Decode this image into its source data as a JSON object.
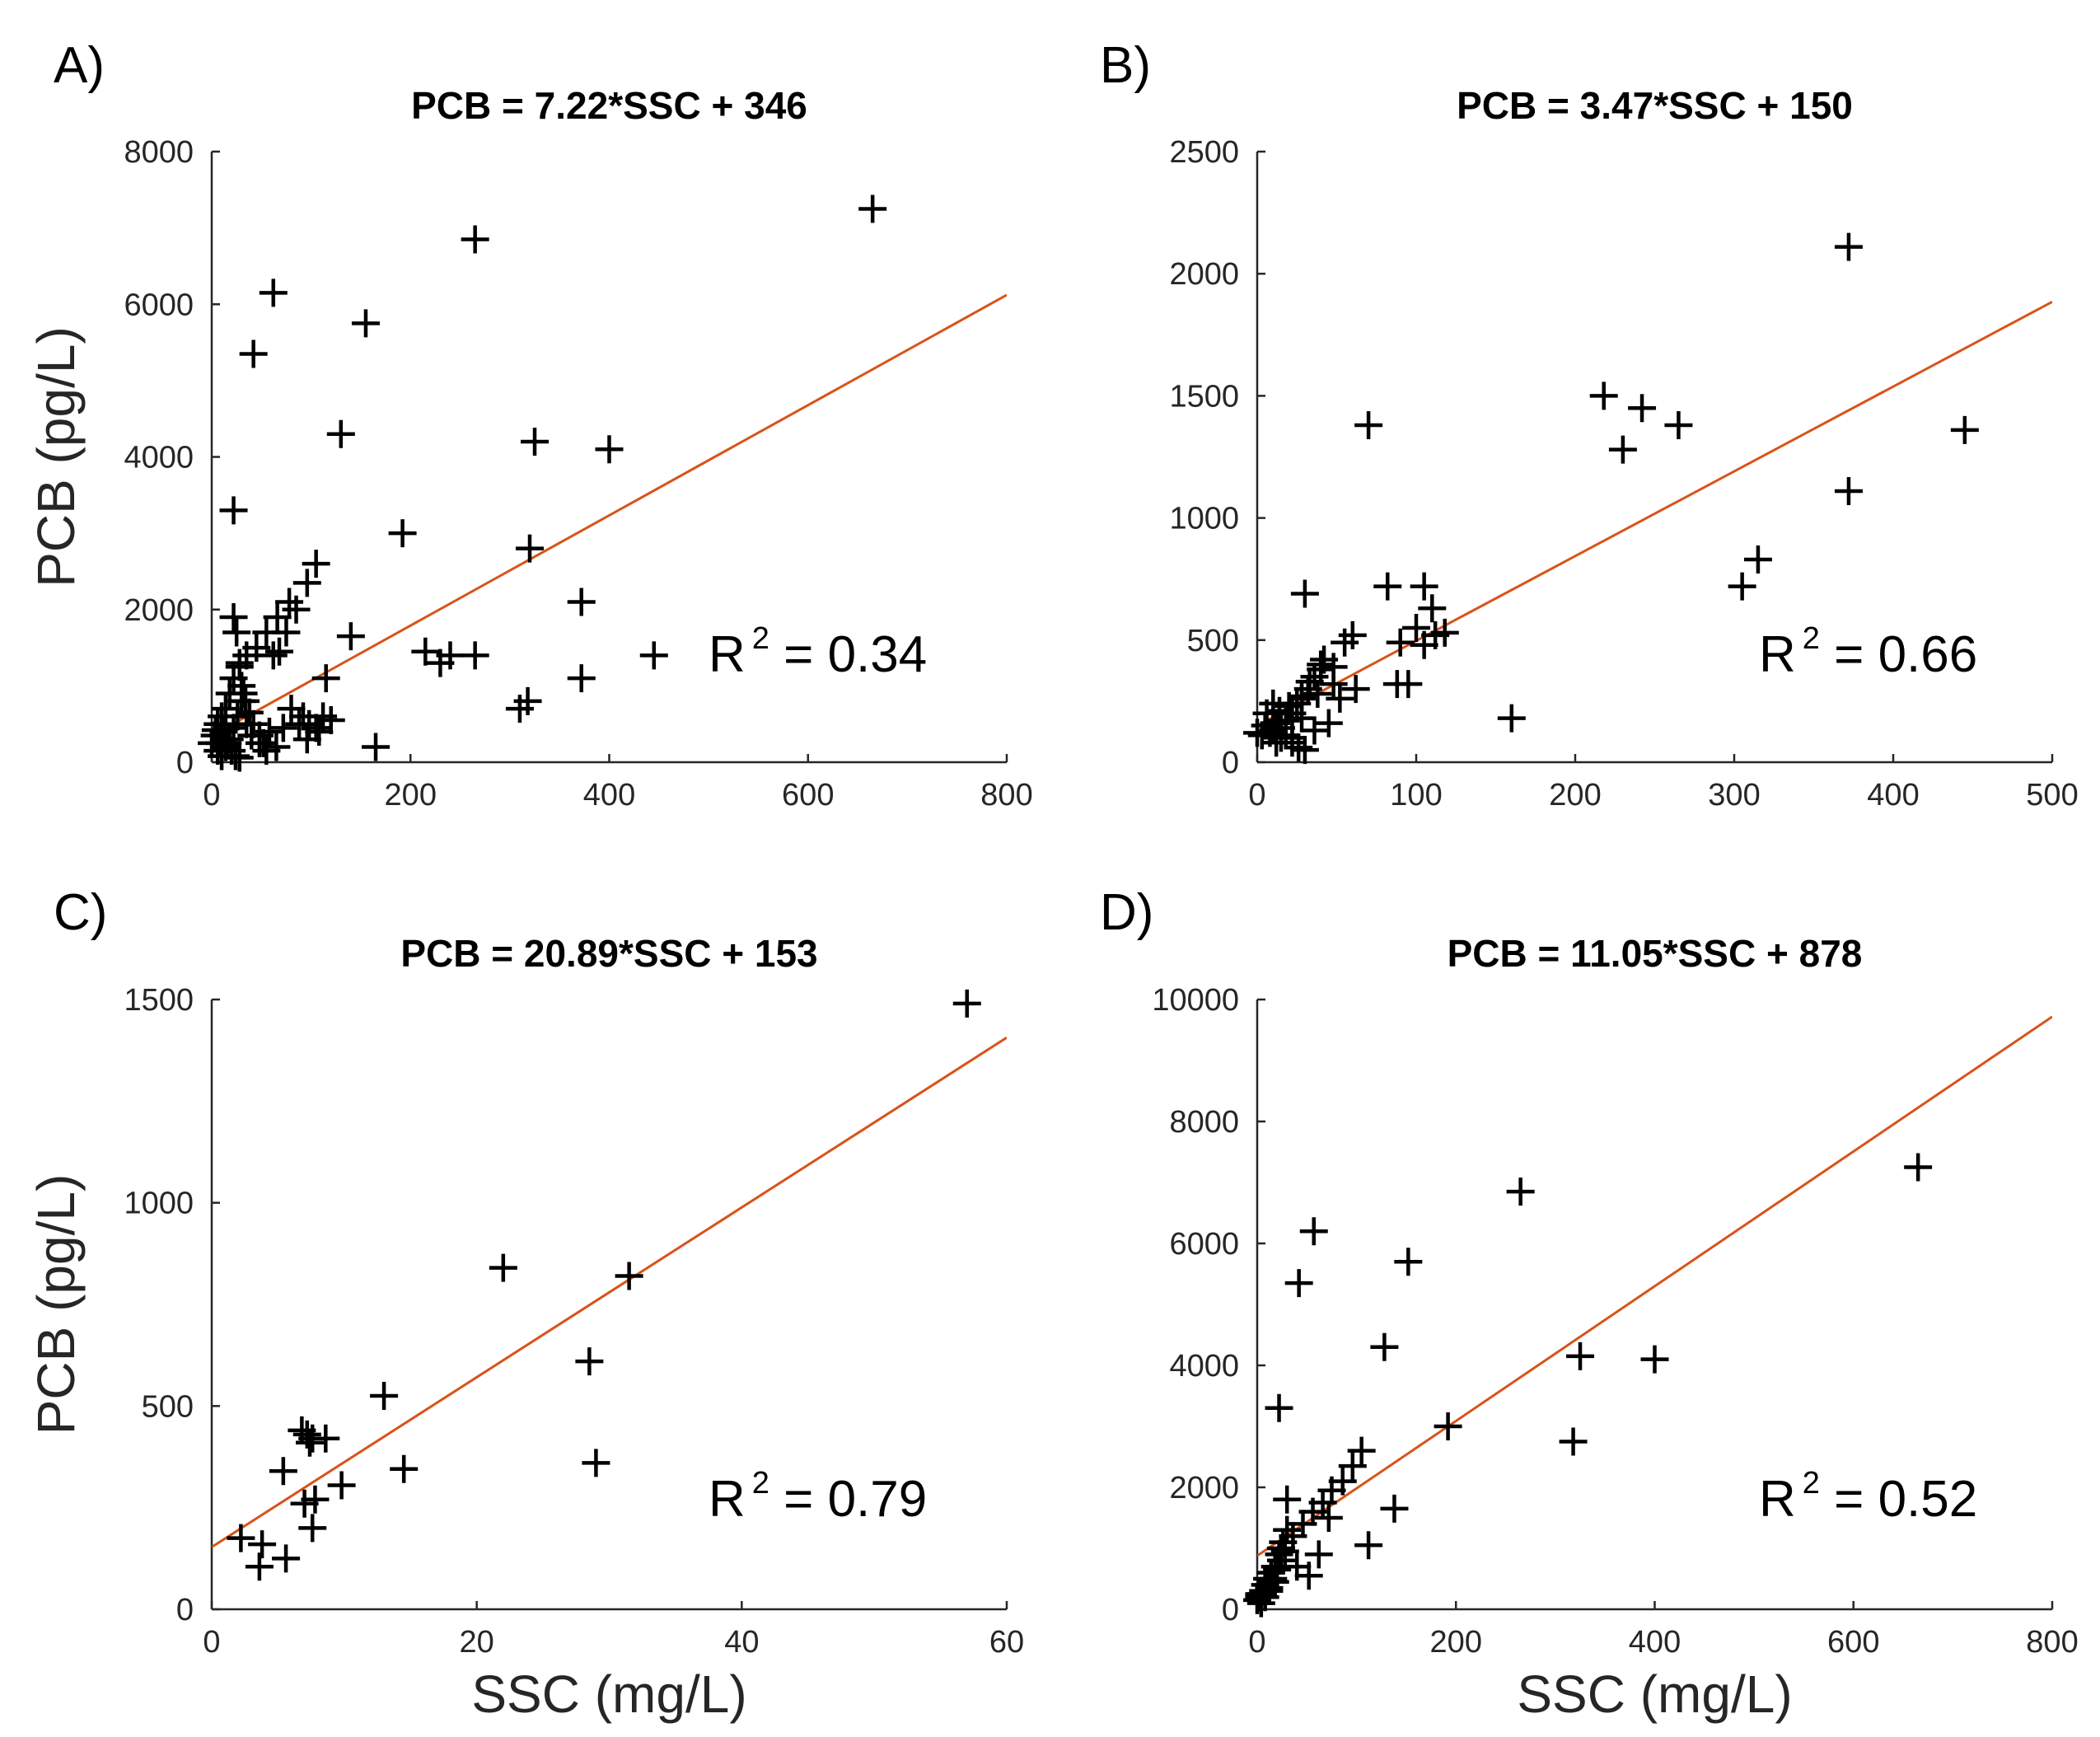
{
  "chart_data": [
    {
      "panel": "A)",
      "type": "scatter",
      "title": "PCB = 7.22*SSC + 346",
      "xlabel": "",
      "ylabel": "PCB (pg/L)",
      "xlim": [
        0,
        800
      ],
      "ylim": [
        0,
        8000
      ],
      "xticks": [
        0,
        200,
        400,
        600,
        800
      ],
      "yticks": [
        0,
        2000,
        4000,
        6000,
        8000
      ],
      "annotation": {
        "base": "R",
        "sup": "2",
        "text": " = 0.34"
      },
      "fit": {
        "slope": 7.22,
        "intercept": 346
      },
      "series": [
        {
          "marker": "+",
          "x": [
            665,
            265,
            62,
            155,
            42,
            22,
            130,
            325,
            400,
            192,
            320,
            372,
            372,
            445,
            265,
            240,
            230,
            215,
            310,
            318,
            165,
            105,
            96,
            78,
            66,
            55,
            45,
            35,
            28,
            22,
            18,
            14,
            10,
            6,
            3,
            0,
            6,
            10,
            14,
            18,
            22,
            26,
            30,
            35,
            40,
            48,
            55,
            65,
            72,
            80,
            88,
            96,
            105,
            112,
            120,
            140,
            22,
            25,
            28,
            30,
            34,
            38,
            42,
            48,
            52,
            58,
            62,
            68,
            75,
            85,
            92,
            98,
            108,
            115,
            12,
            16,
            20,
            24,
            28,
            32,
            8,
            4
          ],
          "y": [
            7250,
            6850,
            6150,
            5750,
            5350,
            3300,
            4300,
            4200,
            4100,
            3000,
            2800,
            2100,
            1100,
            1400,
            1400,
            1400,
            1300,
            1450,
            700,
            800,
            200,
            2600,
            2350,
            2100,
            1900,
            1700,
            1500,
            1400,
            1300,
            1100,
            900,
            700,
            600,
            500,
            350,
            250,
            150,
            80,
            200,
            300,
            450,
            600,
            800,
            500,
            350,
            250,
            150,
            200,
            450,
            700,
            500,
            300,
            450,
            600,
            550,
            1650,
            1900,
            1700,
            1250,
            1000,
            800,
            650,
            500,
            350,
            250,
            400,
            1400,
            1450,
            1700,
            2000,
            600,
            500,
            400,
            1100,
            400,
            250,
            150,
            80,
            60,
            900,
            250,
            420
          ]
        }
      ]
    },
    {
      "panel": "B)",
      "type": "scatter",
      "title": "PCB = 3.47*SSC + 150",
      "xlabel": "",
      "ylabel": "",
      "xlim": [
        0,
        500
      ],
      "ylim": [
        0,
        2500
      ],
      "xticks": [
        0,
        100,
        200,
        300,
        400,
        500
      ],
      "yticks": [
        0,
        500,
        1000,
        1500,
        2000,
        2500
      ],
      "annotation": {
        "base": "R",
        "sup": "2",
        "text": " = 0.66"
      },
      "fit": {
        "slope": 3.47,
        "intercept": 150
      },
      "series": [
        {
          "marker": "+",
          "x": [
            372,
            218,
            242,
            265,
            230,
            445,
            372,
            70,
            315,
            305,
            160,
            30,
            82,
            105,
            110,
            100,
            90,
            88,
            95,
            112,
            118,
            105,
            60,
            55,
            48,
            42,
            40,
            36,
            32,
            28,
            25,
            22,
            18,
            15,
            12,
            10,
            8,
            5,
            3,
            0,
            6,
            10,
            14,
            18,
            22,
            26,
            30,
            36,
            45,
            52,
            62,
            48,
            38,
            28,
            20,
            15,
            12,
            22,
            28,
            33,
            40
          ],
          "y": [
            2110,
            1500,
            1450,
            1380,
            1280,
            1360,
            1110,
            1380,
            830,
            720,
            180,
            690,
            720,
            720,
            630,
            550,
            490,
            320,
            320,
            520,
            530,
            480,
            520,
            490,
            390,
            420,
            400,
            350,
            300,
            270,
            240,
            200,
            170,
            140,
            160,
            130,
            120,
            150,
            110,
            120,
            200,
            240,
            210,
            110,
            80,
            60,
            50,
            130,
            160,
            260,
            300,
            320,
            280,
            260,
            230,
            100,
            80,
            100,
            180,
            330,
            380
          ]
        }
      ]
    },
    {
      "panel": "C)",
      "type": "scatter",
      "title": "PCB = 20.89*SSC + 153",
      "xlabel": "",
      "ylabel": "PCB (pg/L)",
      "xlim": [
        0,
        60
      ],
      "ylim": [
        0,
        1500
      ],
      "xticks": [
        0,
        20,
        40,
        60
      ],
      "yticks": [
        0,
        500,
        1000,
        1500
      ],
      "annotation": {
        "base": "R",
        "sup": "2",
        "text": " = 0.79"
      },
      "fit": {
        "slope": 20.89,
        "intercept": 153
      },
      "series": [
        {
          "marker": "+",
          "x": [
            57,
            22,
            31.5,
            28.5,
            29,
            13,
            14.5,
            6.8,
            7.2,
            7.6,
            8.6,
            7.4,
            7.0,
            5.4,
            9.8,
            7.8,
            7.6,
            2.2,
            3.8,
            5.6,
            3.6
          ],
          "y": [
            1490,
            840,
            820,
            610,
            360,
            525,
            345,
            440,
            430,
            420,
            420,
            410,
            260,
            340,
            305,
            270,
            200,
            175,
            160,
            125,
            105
          ]
        }
      ]
    },
    {
      "panel": "D)",
      "type": "scatter",
      "title": "PCB = 11.05*SSC + 878",
      "xlabel": "SSC (mg/L)",
      "ylabel": "",
      "xlim": [
        0,
        800
      ],
      "ylim": [
        0,
        10000
      ],
      "xticks": [
        0,
        200,
        400,
        600,
        800
      ],
      "yticks": [
        0,
        2000,
        4000,
        6000,
        8000,
        10000
      ],
      "annotation": {
        "base": "R",
        "sup": "2",
        "text": " = 0.52"
      },
      "fit": {
        "slope": 11.05,
        "intercept": 878
      },
      "series": [
        {
          "marker": "+",
          "x": [
            665,
            265,
            57,
            152,
            42,
            22,
            128,
            325,
            400,
            192,
            318,
            138,
            112,
            105,
            96,
            86,
            75,
            66,
            56,
            46,
            36,
            30,
            26,
            22,
            18,
            14,
            10,
            8,
            6,
            4,
            2,
            0,
            12,
            16,
            20,
            24,
            28,
            40,
            52,
            62,
            72,
            30,
            24,
            18,
            12,
            8,
            4,
            2
          ],
          "y": [
            7250,
            6850,
            6200,
            5700,
            5350,
            3300,
            4300,
            4150,
            4100,
            3000,
            2750,
            1650,
            1050,
            2600,
            2350,
            2100,
            1950,
            1750,
            1600,
            1400,
            1200,
            1800,
            1100,
            900,
            700,
            600,
            500,
            400,
            300,
            250,
            200,
            150,
            350,
            500,
            650,
            800,
            950,
            700,
            550,
            900,
            1500,
            1300,
            1000,
            450,
            300,
            200,
            100,
            250
          ]
        }
      ]
    }
  ]
}
